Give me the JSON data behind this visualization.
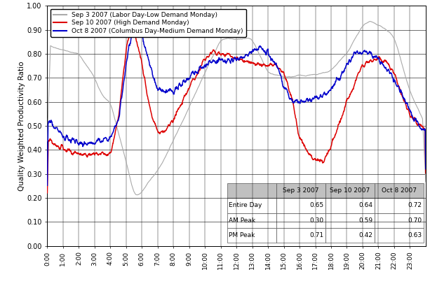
{
  "ylabel": "Quality Weighted Productivity Ratio",
  "ylim": [
    0.0,
    1.0
  ],
  "yticks": [
    0.0,
    0.1,
    0.2,
    0.3,
    0.4,
    0.5,
    0.6,
    0.7,
    0.8,
    0.9,
    1.0
  ],
  "ytick_labels": [
    "0.00",
    "0.10",
    "0.20",
    "0.30",
    "0.40",
    "0.50",
    "0.60",
    "0.70",
    "0.80",
    "0.90",
    "1.00"
  ],
  "colors": {
    "sep3": "#aaaaaa",
    "sep10": "#dd0000",
    "oct8": "#0000cc"
  },
  "legend_labels": [
    "Sep 3 2007 (Labor Day-Low Demand Monday)",
    "Sep 10 2007 (High Demand Monday)",
    "Oct 8 2007 (Columbus Day-Medium Demand Monday)"
  ],
  "table_cols": [
    "",
    "Sep 3 2007",
    "Sep 10 2007",
    "Oct 8 2007"
  ],
  "table_rows": [
    [
      "Entire Day",
      "0.65",
      "0.64",
      "0.72"
    ],
    [
      "AM Peak",
      "0.30",
      "0.59",
      "0.70"
    ],
    [
      "PM Peak",
      "0.71",
      "0.42",
      "0.63"
    ]
  ],
  "background_color": "#ffffff",
  "table_header_bg": "#c0c0c0",
  "table_cell_bg": "#ffffff"
}
